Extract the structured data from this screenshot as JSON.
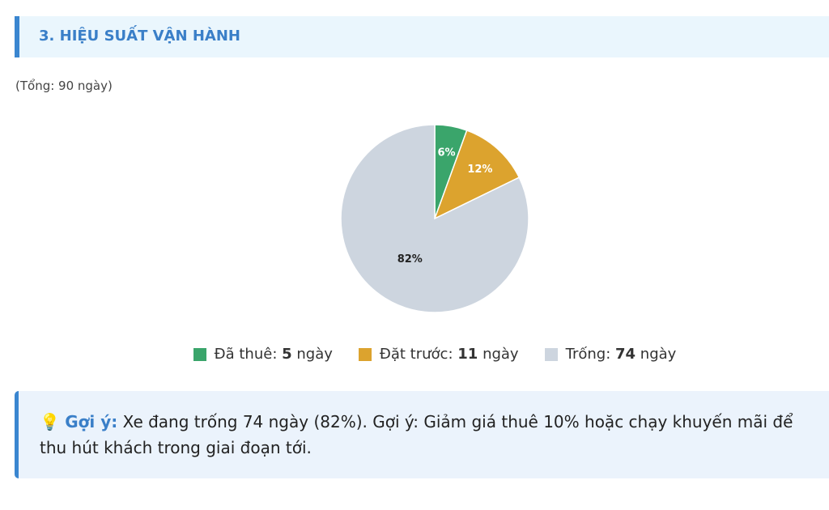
{
  "section": {
    "title": "3. HIỆU SUẤT VẬN HÀNH",
    "total": "(Tổng: 90 ngày)"
  },
  "chart_data": {
    "type": "pie",
    "categories": [
      "Đã thuê",
      "Đặt trước",
      "Trống"
    ],
    "values": [
      5,
      11,
      74
    ],
    "percent_labels": [
      "6%",
      "12%",
      "82%"
    ],
    "colors": [
      "#3aa56b",
      "#dca32e",
      "#cdd5df"
    ],
    "label_colors": [
      "#ffffff",
      "#ffffff",
      "#222222"
    ],
    "legend": [
      {
        "label": "Đã thuê:",
        "value": "5",
        "unit": "ngày"
      },
      {
        "label": "Đặt trước:",
        "value": "11",
        "unit": "ngày"
      },
      {
        "label": "Trống:",
        "value": "74",
        "unit": "ngày"
      }
    ],
    "legend_position": "bottom"
  },
  "tip": {
    "icon": "lightbulb-icon",
    "label": "Gợi ý:",
    "text": " Xe đang trống 74 ngày (82%). Gợi ý: Giảm giá thuê 10% hoặc chạy khuyến mãi để thu hút khách trong giai đoạn tới."
  }
}
